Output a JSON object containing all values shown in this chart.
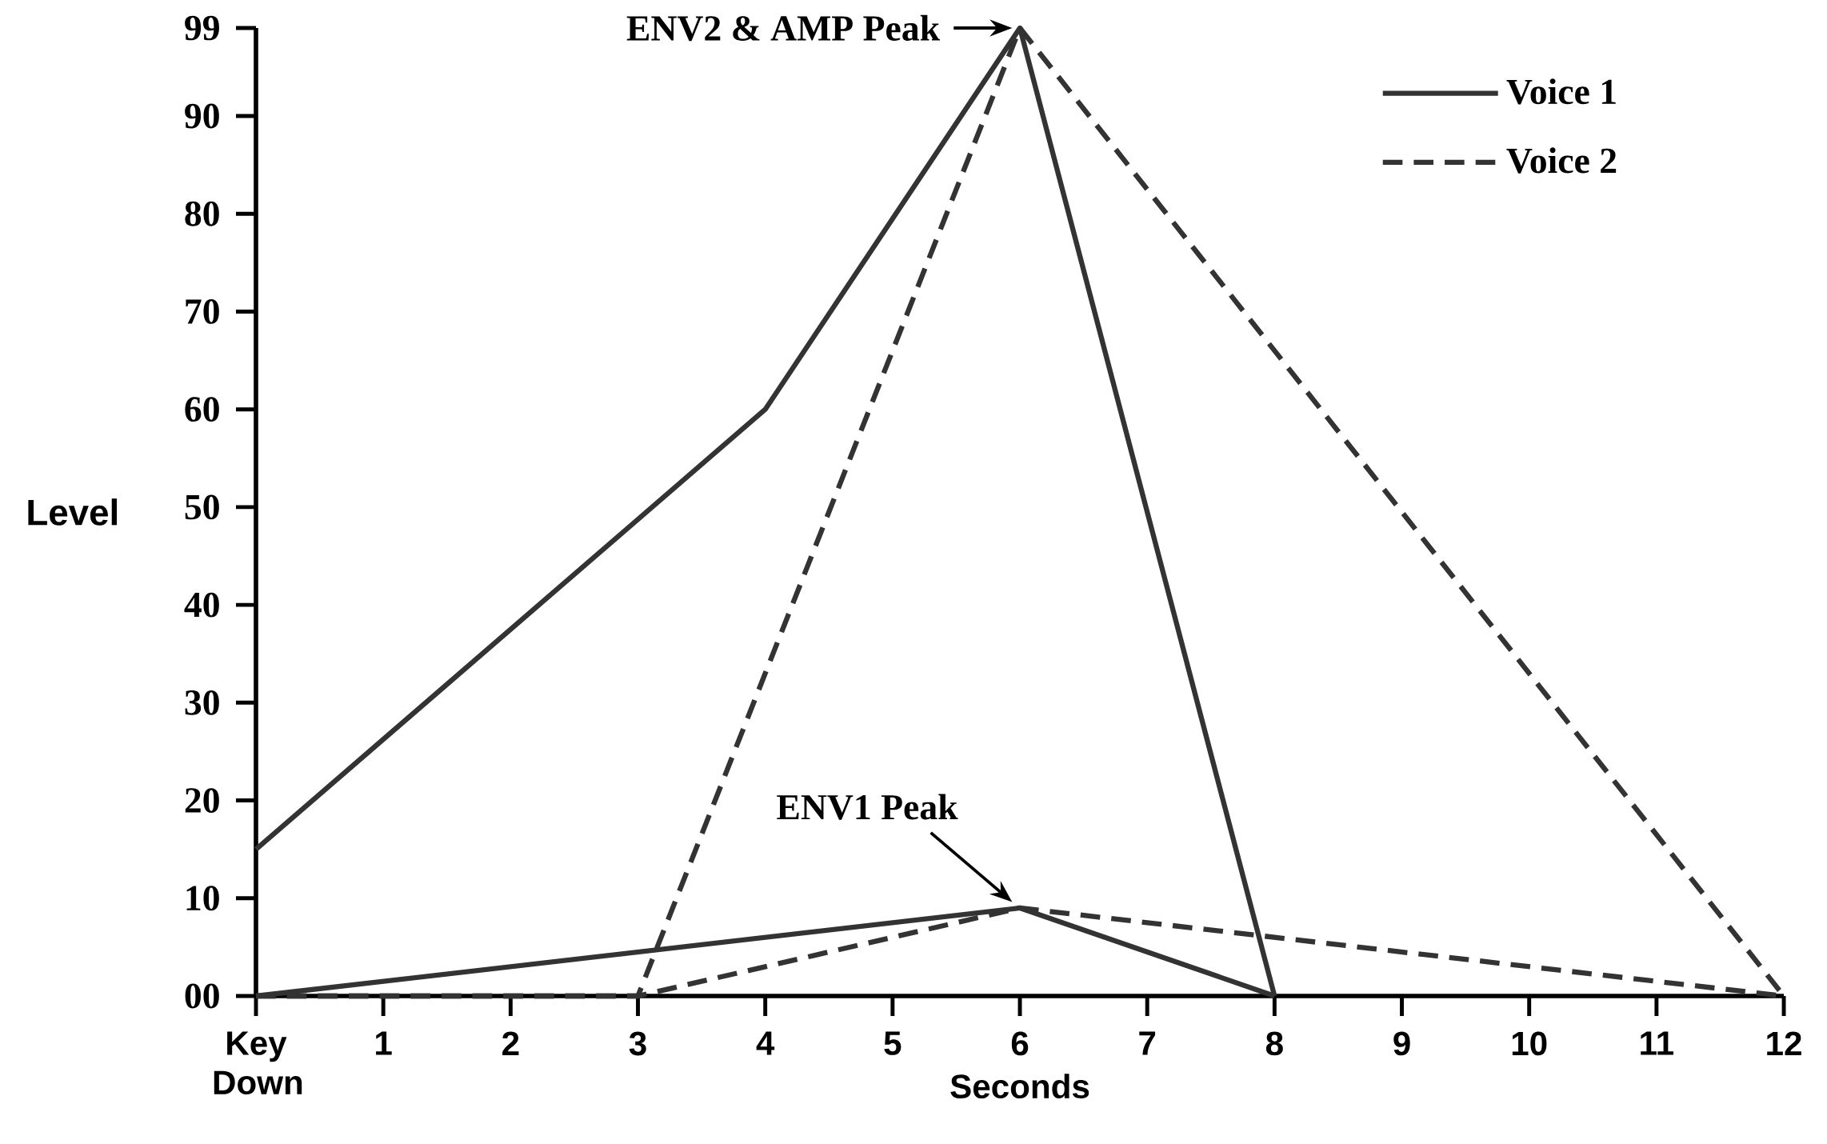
{
  "chart_data": {
    "type": "line",
    "xlabel": "Seconds",
    "ylabel": "Level",
    "xlim": [
      0,
      12
    ],
    "ylim": [
      0,
      99
    ],
    "xticks": [
      {
        "value": 0,
        "label": "Key Down"
      },
      1,
      2,
      3,
      4,
      5,
      6,
      7,
      8,
      9,
      10,
      11,
      12
    ],
    "yticks": [
      {
        "value": 0,
        "label": "00"
      },
      10,
      20,
      30,
      40,
      50,
      60,
      70,
      80,
      90,
      99
    ],
    "series": [
      {
        "name": "Voice 1",
        "color": "#333333",
        "line_style": "solid",
        "x": [
          0,
          4,
          6,
          8
        ],
        "values": [
          15,
          60,
          99,
          0
        ]
      },
      {
        "color": "#333333",
        "line_style": "solid",
        "x": [
          0,
          6,
          8
        ],
        "values": [
          0,
          9,
          0
        ]
      },
      {
        "name": "Voice 2",
        "color": "#333333",
        "line_style": "dashed",
        "x": [
          0,
          3,
          6,
          12
        ],
        "values": [
          0,
          0,
          99,
          0
        ]
      },
      {
        "color": "#333333",
        "line_style": "dashed",
        "x": [
          0,
          3,
          6,
          12
        ],
        "values": [
          0,
          0,
          9,
          0
        ]
      }
    ],
    "legend": "top right",
    "grid": false,
    "marker": "none",
    "annotations": [
      {
        "text": "ENV2 & AMP Peak",
        "x": 6,
        "y": 99
      },
      {
        "text": "ENV1 Peak",
        "x": 6,
        "y": 9
      }
    ]
  }
}
